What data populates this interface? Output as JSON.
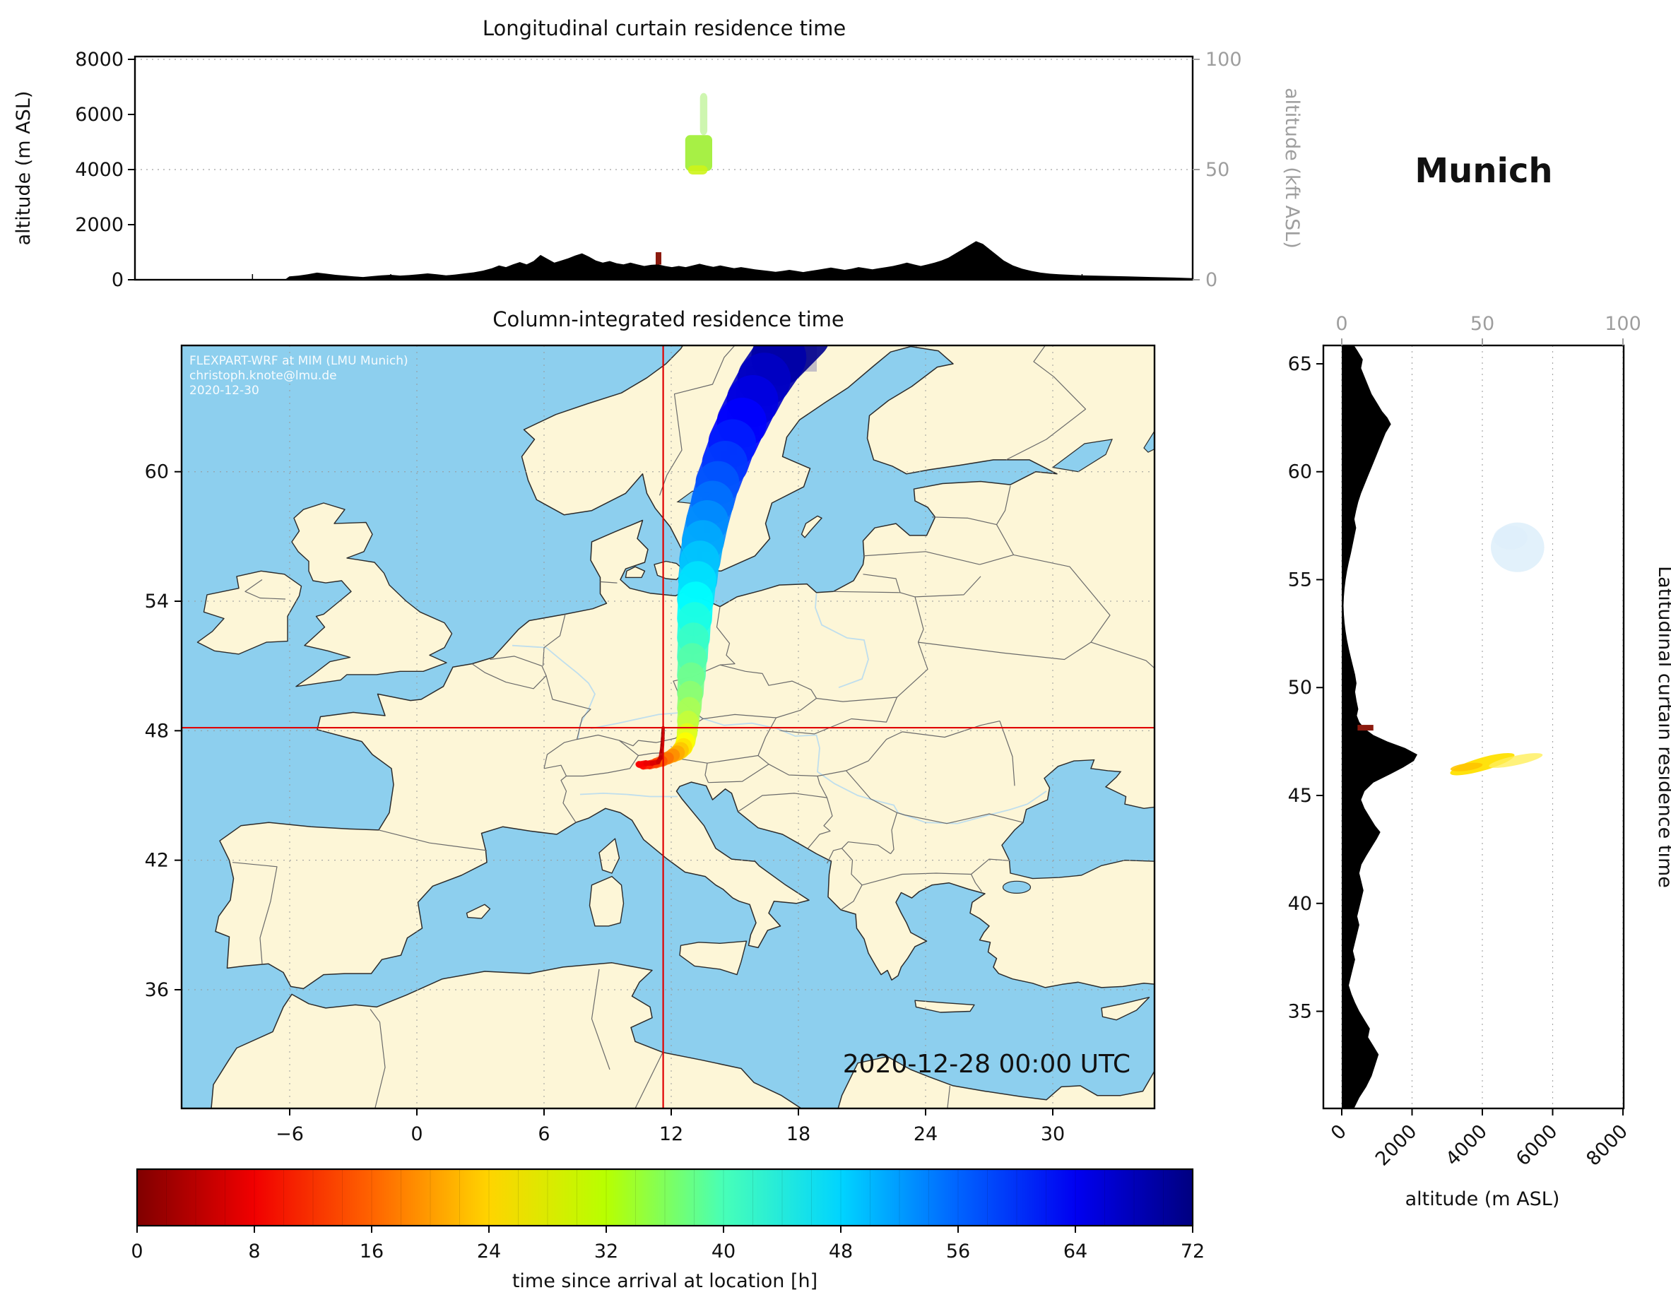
{
  "app": {
    "station_label": "Munich"
  },
  "colors": {
    "sea": "#8dcfee",
    "land": "#fdf6d7",
    "coastline": "#2b2b2b",
    "country_border": "#6a6a6a",
    "river": "#b8dcef",
    "terrain": "#000000",
    "crosshair": "#e00000",
    "grid_dotted": "#999999",
    "kft_axis": "#9e9e9e",
    "frame": "#000000"
  },
  "chart_data": {
    "figure_type": "FLEXPART-WRF residence time analysis: longitudinal curtain, column-integrated map, latitudinal curtain, colorbar",
    "longitudinal_curtain": {
      "type": "curtain",
      "title": "Longitudinal curtain residence time",
      "ylabel": "altitude (m ASL)",
      "ylabel_right": "altitude (kft ASL)",
      "yticks_m": [
        0,
        2000,
        4000,
        6000,
        8000
      ],
      "yticks_kft": [
        0,
        50,
        100
      ],
      "ylim_m": [
        0,
        8100
      ],
      "xlim_lon": [
        -11.1,
        34.8
      ],
      "receptor_marker": {
        "lon": 11.62,
        "alt_m": [
          550,
          1000
        ],
        "color": "#8b1a0e"
      },
      "residence_blobs": [
        {
          "lon": [
            12.78,
            13.95
          ],
          "alt_m": [
            3950,
            5250
          ],
          "hours": 31,
          "color": "#a2ef3b",
          "opacity": 0.95
        },
        {
          "lon": [
            13.42,
            13.74
          ],
          "alt_m": [
            5250,
            6780
          ],
          "hours": 29,
          "color": "#a5ef70",
          "opacity": 0.55
        },
        {
          "lon": [
            12.9,
            13.75
          ],
          "alt_m": [
            3820,
            4150
          ],
          "hours": 26,
          "color": "#cdf418",
          "opacity": 0.9
        }
      ],
      "terrain_profile_lon_m": [
        [
          -11.1,
          0
        ],
        [
          -5.0,
          0
        ],
        [
          -4.6,
          0
        ],
        [
          -4.4,
          120
        ],
        [
          -4.0,
          150
        ],
        [
          -3.6,
          200
        ],
        [
          -3.2,
          260
        ],
        [
          -2.8,
          220
        ],
        [
          -2.4,
          180
        ],
        [
          -2.0,
          150
        ],
        [
          -1.6,
          120
        ],
        [
          -1.2,
          100
        ],
        [
          -0.8,
          130
        ],
        [
          -0.4,
          160
        ],
        [
          0,
          180
        ],
        [
          0.4,
          150
        ],
        [
          0.8,
          170
        ],
        [
          1.2,
          200
        ],
        [
          1.6,
          230
        ],
        [
          2.0,
          200
        ],
        [
          2.4,
          160
        ],
        [
          2.8,
          190
        ],
        [
          3.2,
          230
        ],
        [
          3.6,
          270
        ],
        [
          4.0,
          330
        ],
        [
          4.4,
          420
        ],
        [
          4.7,
          520
        ],
        [
          5.0,
          460
        ],
        [
          5.3,
          560
        ],
        [
          5.6,
          640
        ],
        [
          5.9,
          560
        ],
        [
          6.2,
          680
        ],
        [
          6.5,
          900
        ],
        [
          6.8,
          760
        ],
        [
          7.1,
          620
        ],
        [
          7.4,
          700
        ],
        [
          7.7,
          780
        ],
        [
          8.0,
          880
        ],
        [
          8.3,
          960
        ],
        [
          8.6,
          840
        ],
        [
          8.9,
          700
        ],
        [
          9.2,
          620
        ],
        [
          9.5,
          680
        ],
        [
          9.8,
          600
        ],
        [
          10.1,
          560
        ],
        [
          10.4,
          620
        ],
        [
          10.7,
          560
        ],
        [
          11.0,
          500
        ],
        [
          11.3,
          540
        ],
        [
          11.6,
          560
        ],
        [
          11.9,
          500
        ],
        [
          12.2,
          460
        ],
        [
          12.5,
          500
        ],
        [
          12.8,
          460
        ],
        [
          13.1,
          520
        ],
        [
          13.4,
          580
        ],
        [
          13.7,
          520
        ],
        [
          14.0,
          470
        ],
        [
          14.3,
          520
        ],
        [
          14.6,
          470
        ],
        [
          14.9,
          420
        ],
        [
          15.2,
          460
        ],
        [
          15.5,
          420
        ],
        [
          15.8,
          380
        ],
        [
          16.1,
          350
        ],
        [
          16.4,
          320
        ],
        [
          16.7,
          290
        ],
        [
          17.0,
          320
        ],
        [
          17.3,
          360
        ],
        [
          17.6,
          320
        ],
        [
          17.9,
          280
        ],
        [
          18.2,
          320
        ],
        [
          18.5,
          360
        ],
        [
          18.8,
          400
        ],
        [
          19.1,
          440
        ],
        [
          19.4,
          400
        ],
        [
          19.7,
          360
        ],
        [
          20.0,
          400
        ],
        [
          20.3,
          460
        ],
        [
          20.6,
          420
        ],
        [
          20.9,
          380
        ],
        [
          21.2,
          420
        ],
        [
          21.5,
          460
        ],
        [
          21.8,
          500
        ],
        [
          22.1,
          560
        ],
        [
          22.4,
          620
        ],
        [
          22.7,
          560
        ],
        [
          23.0,
          500
        ],
        [
          23.3,
          560
        ],
        [
          23.6,
          620
        ],
        [
          23.9,
          700
        ],
        [
          24.2,
          800
        ],
        [
          24.5,
          950
        ],
        [
          24.8,
          1100
        ],
        [
          25.1,
          1250
        ],
        [
          25.4,
          1400
        ],
        [
          25.7,
          1300
        ],
        [
          26.0,
          1100
        ],
        [
          26.3,
          900
        ],
        [
          26.6,
          700
        ],
        [
          27.0,
          520
        ],
        [
          27.4,
          400
        ],
        [
          27.8,
          320
        ],
        [
          28.2,
          260
        ],
        [
          28.6,
          220
        ],
        [
          29.0,
          200
        ],
        [
          29.5,
          180
        ],
        [
          30.0,
          160
        ],
        [
          31.0,
          140
        ],
        [
          32.0,
          120
        ],
        [
          33.0,
          100
        ],
        [
          34.0,
          80
        ],
        [
          34.8,
          60
        ]
      ]
    },
    "map": {
      "type": "map",
      "title": "Column-integrated residence time",
      "timestamp": "2020-12-28 00:00 UTC",
      "watermark": [
        "FLEXPART-WRF at MIM (LMU Munich)",
        "christoph.knote@lmu.de",
        "2020-12-30"
      ],
      "extent": {
        "lon": [
          -11.1,
          34.8
        ],
        "lat": [
          30.5,
          65.85
        ]
      },
      "xticks_lon": [
        -6,
        0,
        6,
        12,
        18,
        24,
        30
      ],
      "yticks_lat": [
        36,
        42,
        48,
        54,
        60
      ],
      "receptor": {
        "name": "Munich",
        "lon": 11.62,
        "lat": 48.14
      },
      "plume_track": [
        [
          72,
          18.2,
          66.4,
          2.7
        ],
        [
          70,
          17.1,
          65.3,
          2.6
        ],
        [
          68,
          16.4,
          64.3,
          2.5
        ],
        [
          66,
          15.85,
          63.3,
          2.45
        ],
        [
          64,
          15.35,
          62.3,
          2.35
        ],
        [
          62,
          14.9,
          61.35,
          2.25
        ],
        [
          60,
          14.55,
          60.4,
          2.15
        ],
        [
          58,
          14.2,
          59.5,
          2.05
        ],
        [
          56,
          13.95,
          58.6,
          2.0
        ],
        [
          54,
          13.7,
          57.7,
          2.0
        ],
        [
          52,
          13.5,
          56.8,
          2.0
        ],
        [
          50,
          13.35,
          55.9,
          1.9
        ],
        [
          48,
          13.25,
          55.0,
          1.8
        ],
        [
          46,
          13.15,
          54.1,
          1.7
        ],
        [
          44,
          13.1,
          53.2,
          1.6
        ],
        [
          42,
          13.05,
          52.3,
          1.5
        ],
        [
          40,
          13.0,
          51.4,
          1.4
        ],
        [
          38,
          12.95,
          50.55,
          1.3
        ],
        [
          36,
          12.9,
          49.75,
          1.2
        ],
        [
          34,
          12.85,
          49.05,
          1.1
        ],
        [
          32,
          12.8,
          48.45,
          1.0
        ],
        [
          30,
          12.75,
          47.9,
          0.95
        ],
        [
          28,
          12.68,
          47.5,
          0.9
        ],
        [
          26,
          12.58,
          47.25,
          0.85
        ],
        [
          24,
          12.45,
          47.1,
          0.8
        ],
        [
          22,
          12.3,
          46.98,
          0.72
        ],
        [
          20,
          12.1,
          46.87,
          0.65
        ],
        [
          18,
          11.85,
          46.74,
          0.58
        ],
        [
          16,
          11.58,
          46.6,
          0.52
        ],
        [
          14,
          11.28,
          46.5,
          0.46
        ],
        [
          12,
          10.98,
          46.42,
          0.4
        ],
        [
          10,
          10.68,
          46.38,
          0.35
        ],
        [
          9,
          10.48,
          46.44,
          0.3
        ],
        [
          8,
          10.8,
          46.5,
          0.26
        ],
        [
          7,
          11.1,
          46.5,
          0.24
        ],
        [
          6,
          11.38,
          46.55,
          0.22
        ],
        [
          5,
          11.5,
          46.75,
          0.2
        ],
        [
          4,
          11.55,
          47.05,
          0.19
        ],
        [
          3,
          11.58,
          47.35,
          0.18
        ],
        [
          2,
          11.6,
          47.65,
          0.17
        ],
        [
          1,
          11.61,
          47.9,
          0.16
        ],
        [
          0,
          11.62,
          48.14,
          0.15
        ]
      ]
    },
    "latitudinal_curtain": {
      "type": "curtain",
      "side_label": "Latitudinal curtain residence time",
      "xlabel": "altitude (m ASL)",
      "xticks_m": [
        0,
        2000,
        4000,
        6000,
        8000
      ],
      "xticks_kft": [
        0,
        50,
        100
      ],
      "yticks_lat": [
        35,
        40,
        45,
        50,
        55,
        60,
        65
      ],
      "xlim_m": [
        -520,
        8020
      ],
      "receptor_marker": {
        "lat": 48.14,
        "alt_m": [
          450,
          900
        ],
        "color": "#8b1a0e"
      },
      "residence_blobs": [
        {
          "lat": 46.45,
          "alt_m": 4000,
          "r_lat": 0.3,
          "r_alt_m": 950,
          "rotate_deg": -16,
          "hours": 22,
          "color": "#ffe000",
          "opacity": 0.95
        },
        {
          "lat": 46.62,
          "alt_m": 4950,
          "r_lat": 0.22,
          "r_alt_m": 780,
          "rotate_deg": -12,
          "hours": 24,
          "color": "#ffef5a",
          "opacity": 0.8
        },
        {
          "lat": 46.32,
          "alt_m": 3550,
          "r_lat": 0.17,
          "r_alt_m": 460,
          "rotate_deg": -8,
          "hours": 18,
          "color": "#ffc400",
          "opacity": 0.9
        },
        {
          "lat": 56.5,
          "alt_m": 5000,
          "r_lat": 1.15,
          "r_alt_m": 760,
          "rotate_deg": 0,
          "hours": 50,
          "color": "#b9ddf6",
          "opacity": 0.42
        },
        {
          "lat": 56.95,
          "alt_m": 4800,
          "r_lat": 0.55,
          "r_alt_m": 480,
          "rotate_deg": 0,
          "hours": 50,
          "color": "#dceefb",
          "opacity": 0.5
        }
      ],
      "terrain_profile_lat_m": [
        [
          30.5,
          350
        ],
        [
          31,
          500
        ],
        [
          31.5,
          700
        ],
        [
          32,
          850
        ],
        [
          32.5,
          950
        ],
        [
          33,
          1050
        ],
        [
          33.4,
          900
        ],
        [
          33.8,
          750
        ],
        [
          34.2,
          800
        ],
        [
          34.6,
          650
        ],
        [
          35,
          500
        ],
        [
          35.4,
          380
        ],
        [
          35.8,
          280
        ],
        [
          36.2,
          200
        ],
        [
          36.6,
          260
        ],
        [
          37,
          320
        ],
        [
          37.4,
          380
        ],
        [
          37.8,
          320
        ],
        [
          38.2,
          380
        ],
        [
          38.6,
          440
        ],
        [
          39,
          500
        ],
        [
          39.4,
          440
        ],
        [
          39.8,
          500
        ],
        [
          40.2,
          560
        ],
        [
          40.6,
          620
        ],
        [
          41,
          560
        ],
        [
          41.4,
          500
        ],
        [
          41.8,
          560
        ],
        [
          42.2,
          700
        ],
        [
          42.6,
          850
        ],
        [
          43,
          1000
        ],
        [
          43.3,
          1100
        ],
        [
          43.6,
          950
        ],
        [
          44,
          800
        ],
        [
          44.4,
          650
        ],
        [
          44.8,
          550
        ],
        [
          45.2,
          650
        ],
        [
          45.6,
          900
        ],
        [
          46,
          1400
        ],
        [
          46.3,
          1750
        ],
        [
          46.6,
          2050
        ],
        [
          46.9,
          2150
        ],
        [
          47.2,
          1800
        ],
        [
          47.5,
          1300
        ],
        [
          47.8,
          900
        ],
        [
          48.1,
          650
        ],
        [
          48.4,
          500
        ],
        [
          48.7,
          430
        ],
        [
          49,
          470
        ],
        [
          49.4,
          420
        ],
        [
          49.8,
          380
        ],
        [
          50.2,
          420
        ],
        [
          50.6,
          380
        ],
        [
          51,
          320
        ],
        [
          51.4,
          260
        ],
        [
          51.8,
          200
        ],
        [
          52.2,
          150
        ],
        [
          52.6,
          110
        ],
        [
          53,
          80
        ],
        [
          53.4,
          60
        ],
        [
          53.8,
          50
        ],
        [
          54.2,
          60
        ],
        [
          54.6,
          80
        ],
        [
          55,
          110
        ],
        [
          55.4,
          150
        ],
        [
          55.8,
          200
        ],
        [
          56.2,
          260
        ],
        [
          56.6,
          310
        ],
        [
          57,
          360
        ],
        [
          57.4,
          410
        ],
        [
          57.8,
          360
        ],
        [
          58.2,
          410
        ],
        [
          58.6,
          470
        ],
        [
          59,
          550
        ],
        [
          59.4,
          650
        ],
        [
          59.8,
          750
        ],
        [
          60.2,
          850
        ],
        [
          60.6,
          950
        ],
        [
          61,
          1050
        ],
        [
          61.4,
          1150
        ],
        [
          61.8,
          1250
        ],
        [
          62.2,
          1400
        ],
        [
          62.5,
          1300
        ],
        [
          62.8,
          1150
        ],
        [
          63.2,
          1000
        ],
        [
          63.6,
          850
        ],
        [
          64,
          750
        ],
        [
          64.4,
          650
        ],
        [
          64.8,
          550
        ],
        [
          65.2,
          600
        ],
        [
          65.6,
          450
        ],
        [
          65.85,
          350
        ]
      ]
    },
    "colorbar": {
      "label": "time since arrival at location [h]",
      "ticks": [
        0,
        8,
        16,
        24,
        32,
        40,
        48,
        56,
        64,
        72
      ],
      "range_h": [
        0,
        72
      ],
      "colormap": "jet reversed",
      "stops": [
        {
          "h": 0,
          "color": "#800000"
        },
        {
          "h": 8,
          "color": "#f10000"
        },
        {
          "h": 16,
          "color": "#ff6300"
        },
        {
          "h": 24,
          "color": "#ffd400"
        },
        {
          "h": 32,
          "color": "#b8ff00"
        },
        {
          "h": 40,
          "color": "#47ffb8"
        },
        {
          "h": 48,
          "color": "#00d4ff"
        },
        {
          "h": 56,
          "color": "#0063ff"
        },
        {
          "h": 64,
          "color": "#0000f1"
        },
        {
          "h": 72,
          "color": "#000080"
        }
      ]
    }
  }
}
